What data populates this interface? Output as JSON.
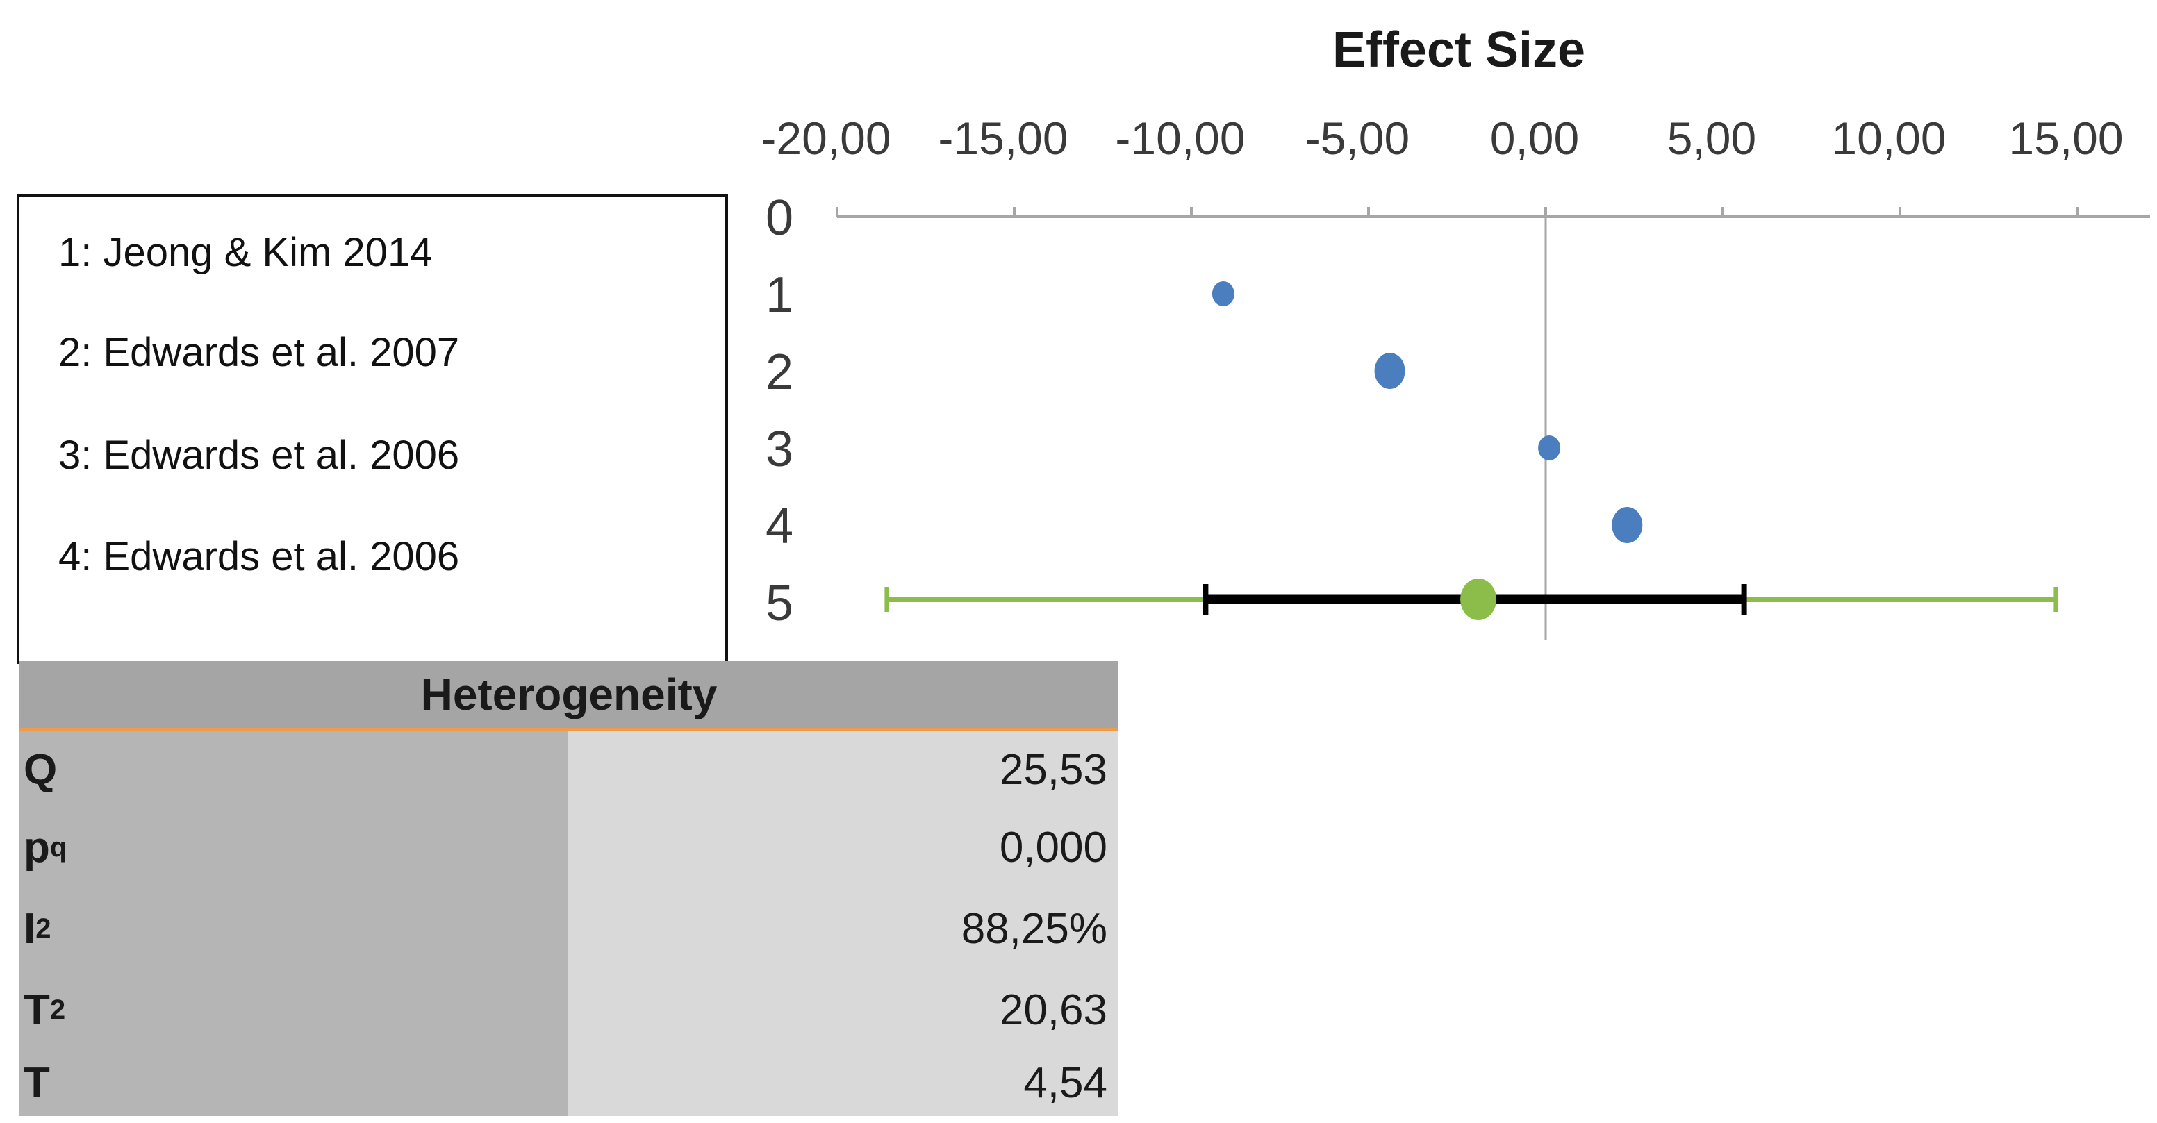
{
  "chart_data": {
    "type": "scatter",
    "title": "Effect Size",
    "x_ticks": [
      "-20,00",
      "-15,00",
      "-10,00",
      "-5,00",
      "0,00",
      "5,00",
      "10,00",
      "15,00"
    ],
    "x_tick_values": [
      -20,
      -15,
      -10,
      -5,
      0,
      5,
      10,
      15
    ],
    "xlim": [
      -20,
      17
    ],
    "y_ticks": [
      "0",
      "1",
      "2",
      "3",
      "4",
      "5"
    ],
    "ylim": [
      0,
      5
    ],
    "colors": {
      "points": "#4a7ebf",
      "summary": "#8cbd4b",
      "ci": "#000000",
      "pi": "#8cbd4b",
      "axis": "#a6a6a6"
    },
    "points": [
      {
        "row": 1,
        "x": -9.1,
        "weight": "small"
      },
      {
        "row": 2,
        "x": -4.4,
        "weight": "large"
      },
      {
        "row": 3,
        "x": 0.1,
        "weight": "small"
      },
      {
        "row": 4,
        "x": 2.3,
        "weight": "large"
      }
    ],
    "summary": {
      "row": 5,
      "estimate": -1.9,
      "ci": [
        -9.6,
        5.6
      ],
      "prediction_interval": [
        -18.6,
        14.4
      ]
    }
  },
  "legend": {
    "items": [
      "1: Jeong & Kim 2014",
      "2: Edwards et al. 2007",
      "3: Edwards et al. 2006",
      "4: Edwards et al. 2006"
    ]
  },
  "heterogeneity": {
    "title": "Heterogeneity",
    "rows": [
      {
        "name": "Q",
        "sub": "",
        "sup": "",
        "value": "25,53"
      },
      {
        "name": "p",
        "sub": "q",
        "sup": "",
        "value": "0,000"
      },
      {
        "name": "I",
        "sub": "",
        "sup": "2",
        "value": "88,25%"
      },
      {
        "name": "T",
        "sub": "",
        "sup": "2",
        "value": "20,63"
      },
      {
        "name": "T",
        "sub": "",
        "sup": "",
        "value": "4,54"
      }
    ]
  }
}
